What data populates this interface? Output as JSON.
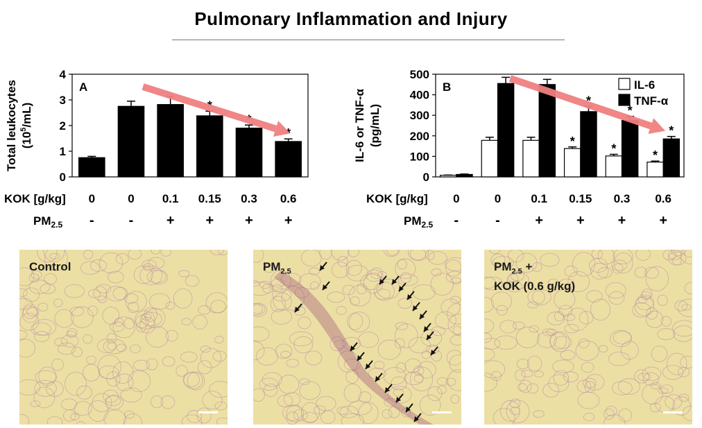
{
  "title": "Pulmonary Inflammation and Injury",
  "chart_data": [
    {
      "type": "bar",
      "panel_letter": "A",
      "ylabel_line1": "Total leukocytes",
      "ylabel_line2": "(10",
      "ylabel_sup": "5",
      "ylabel_line2_end": "/mL)",
      "ylim": [
        0,
        4
      ],
      "yticks": [
        "0",
        "1",
        "2",
        "3",
        "4"
      ],
      "row1_label": "KOK [g/kg]",
      "row2_label_main": "PM",
      "row2_label_sub": "2.5",
      "categories": [
        "0",
        "0",
        "0.1",
        "0.15",
        "0.3",
        "0.6"
      ],
      "pm": [
        "-",
        "-",
        "+",
        "+",
        "+",
        "+"
      ],
      "series": [
        {
          "values": [
            0.75,
            2.75,
            2.82,
            2.38,
            1.9,
            1.38
          ],
          "errors": [
            0.05,
            0.2,
            0.32,
            0.18,
            0.12,
            0.1
          ],
          "sig": [
            "",
            "",
            "",
            "*",
            "*",
            "*"
          ],
          "color": "#000000"
        }
      ]
    },
    {
      "type": "bar",
      "panel_letter": "B",
      "ylabel_line1": "IL-6 or TNF-α",
      "ylabel_line2": "(pg/mL)",
      "ylim": [
        0,
        500
      ],
      "yticks": [
        "0",
        "100",
        "200",
        "300",
        "400",
        "500"
      ],
      "row1_label": "KOK [g/kg]",
      "row2_label_main": "PM",
      "row2_label_sub": "2.5",
      "categories": [
        "0",
        "0",
        "0.1",
        "0.15",
        "0.3",
        "0.6"
      ],
      "pm": [
        "-",
        "-",
        "+",
        "+",
        "+",
        "+"
      ],
      "legend": [
        "IL-6",
        "TNF-α"
      ],
      "series": [
        {
          "name": "IL-6",
          "values": [
            8,
            178,
            178,
            138,
            102,
            72
          ],
          "errors": [
            1,
            15,
            15,
            8,
            8,
            5
          ],
          "sig": [
            "",
            "",
            "",
            "*",
            "*",
            "*"
          ],
          "color": "#ffffff"
        },
        {
          "name": "TNF-α",
          "values": [
            12,
            455,
            450,
            318,
            275,
            185
          ],
          "errors": [
            2,
            30,
            25,
            25,
            20,
            12
          ],
          "sig": [
            "",
            "",
            "",
            "*",
            "*",
            "*"
          ],
          "color": "#000000"
        }
      ]
    }
  ],
  "trend_arrow_color": "#f08080",
  "panels": [
    {
      "label_main": "Control",
      "label_sub": "",
      "label_rest": "",
      "label_line2": ""
    },
    {
      "label_main": "PM",
      "label_sub": "2.5",
      "label_rest": "",
      "label_line2": ""
    },
    {
      "label_main": "PM",
      "label_sub": "2.5",
      "label_rest": " +",
      "label_line2": "KOK (0.6 g/kg)"
    }
  ]
}
